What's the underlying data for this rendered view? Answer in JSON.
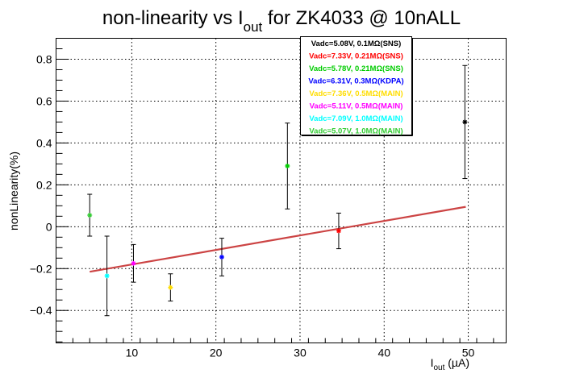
{
  "chart_data": {
    "type": "scatter",
    "title": {
      "main": "non-linearity vs I",
      "sub": "out",
      "tail": " for ZK4033 @ 10nALL"
    },
    "xlabel": {
      "main": "I",
      "sub": "out",
      "tail": " (µA)"
    },
    "ylabel": "nonLinearity(%)",
    "xlim": [
      1,
      54.5
    ],
    "ylim": [
      -0.555,
      0.9
    ],
    "grid": true,
    "legend_position": "top-center",
    "xticks": [
      {
        "value": 10,
        "label": "10"
      },
      {
        "value": 20,
        "label": "20"
      },
      {
        "value": 30,
        "label": "30"
      },
      {
        "value": 40,
        "label": "40"
      },
      {
        "value": 50,
        "label": "50"
      }
    ],
    "yticks": [
      {
        "value": -0.4,
        "label": "−0.4"
      },
      {
        "value": -0.2,
        "label": "−0.2"
      },
      {
        "value": 0,
        "label": "0"
      },
      {
        "value": 0.2,
        "label": "0.2"
      },
      {
        "value": 0.4,
        "label": "0.4"
      },
      {
        "value": 0.6,
        "label": "0.6"
      },
      {
        "value": 0.8,
        "label": "0.8"
      }
    ],
    "series": [
      {
        "name": "Vadc=5.08V, 0.1MΩ(SNS)",
        "color": "#000000",
        "points": [
          {
            "x": 49.6,
            "y": 0.5,
            "err": 0.27
          }
        ]
      },
      {
        "name": "Vadc=7.33V, 0.21MΩ(SNS)",
        "color": "#ff0000",
        "points": [
          {
            "x": 34.6,
            "y": -0.02,
            "err": 0.085
          }
        ]
      },
      {
        "name": "Vadc=5.78V, 0.21MΩ(SNS)",
        "color": "#00cc00",
        "points": [
          {
            "x": 28.5,
            "y": 0.29,
            "err": 0.205
          }
        ]
      },
      {
        "name": "Vadc=6.31V, 0.3MΩ(KDPA)",
        "color": "#0000ff",
        "points": [
          {
            "x": 20.7,
            "y": -0.145,
            "err": 0.09
          }
        ]
      },
      {
        "name": "Vadc=7.36V, 0.5MΩ(MAIN)",
        "color": "#ffdd00",
        "points": [
          {
            "x": 14.6,
            "y": -0.29,
            "err": 0.065
          }
        ]
      },
      {
        "name": "Vadc=5.11V, 0.5MΩ(MAIN)",
        "color": "#ff00ff",
        "points": [
          {
            "x": 10.2,
            "y": -0.175,
            "err": 0.09
          }
        ]
      },
      {
        "name": "Vadc=7.09V, 1.0MΩ(MAIN)",
        "color": "#00ffff",
        "points": [
          {
            "x": 7.05,
            "y": -0.235,
            "err": 0.19
          }
        ]
      },
      {
        "name": "Vadc=5.07V, 1.0MΩ(MAIN)",
        "color": "#33cc33",
        "points": [
          {
            "x": 5.0,
            "y": 0.055,
            "err": 0.1
          }
        ]
      }
    ],
    "fit_line": {
      "color": "#cc4444",
      "x": [
        5.0,
        49.7
      ],
      "y": [
        -0.215,
        0.095
      ]
    }
  }
}
